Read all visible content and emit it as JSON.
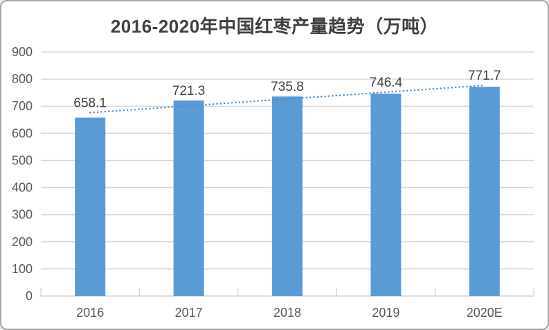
{
  "chart_data": {
    "type": "bar",
    "title": "2016-2020年中国红枣产量趋势（万吨）",
    "categories": [
      "2016",
      "2017",
      "2018",
      "2019",
      "2020E"
    ],
    "values": [
      658.1,
      721.3,
      735.8,
      746.4,
      771.7
    ],
    "xlabel": "",
    "ylabel": "",
    "ylim": [
      0,
      900
    ],
    "ytick_step": 100,
    "grid": true,
    "legend": "none",
    "trendline": "linear-dotted",
    "colors": {
      "bar": "#5b9bd5",
      "trend": "#4f8bc9",
      "grid": "#d9d9d9",
      "axis_text": "#595959",
      "label_text": "#404040",
      "title_text": "#3f3f3f",
      "border": "#a6a6a6",
      "background": "#ffffff"
    }
  }
}
